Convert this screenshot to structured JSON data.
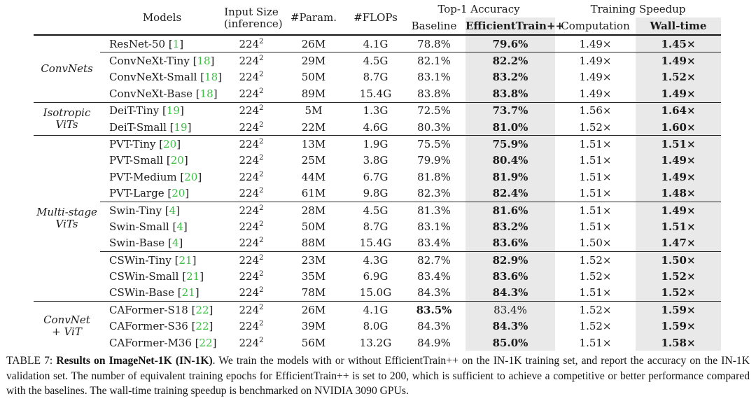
{
  "colors": {
    "citation_green": "#3cbf44",
    "column_shade": "#e9e9e9",
    "text": "#1b1b1b"
  },
  "table": {
    "headers": {
      "models": "Models",
      "input_line1": "Input Size",
      "input_line2": "(inference)",
      "params": "#Param.",
      "flops": "#FLOPs",
      "top1_accuracy": "Top-1 Accuracy",
      "training_speedup": "Training Speedup",
      "baseline": "Baseline",
      "efficienttrain": "EfficientTrain++",
      "computation": "Computation",
      "walltime": "Wall-time"
    },
    "groups": [
      {
        "label_lines": [
          "ConvNets"
        ],
        "blocks": [
          {
            "rows": [
              {
                "model": "ResNet-50",
                "ref": "1",
                "input": "224",
                "exp": "2",
                "params": "26M",
                "flops": "4.1G",
                "baseline": "78.8%",
                "et": "79.6%",
                "comp": "1.49×",
                "wall": "1.45×"
              }
            ]
          },
          {
            "rows": [
              {
                "model": "ConvNeXt-Tiny",
                "ref": "18",
                "input": "224",
                "exp": "2",
                "params": "29M",
                "flops": "4.5G",
                "baseline": "82.1%",
                "et": "82.2%",
                "comp": "1.49×",
                "wall": "1.49×"
              },
              {
                "model": "ConvNeXt-Small",
                "ref": "18",
                "input": "224",
                "exp": "2",
                "params": "50M",
                "flops": "8.7G",
                "baseline": "83.1%",
                "et": "83.2%",
                "comp": "1.49×",
                "wall": "1.52×"
              },
              {
                "model": "ConvNeXt-Base",
                "ref": "18",
                "input": "224",
                "exp": "2",
                "params": "89M",
                "flops": "15.4G",
                "baseline": "83.8%",
                "et": "83.8%",
                "comp": "1.49×",
                "wall": "1.49×"
              }
            ]
          }
        ]
      },
      {
        "label_lines": [
          "Isotropic",
          "ViTs"
        ],
        "blocks": [
          {
            "rows": [
              {
                "model": "DeiT-Tiny",
                "ref": "19",
                "input": "224",
                "exp": "2",
                "params": "5M",
                "flops": "1.3G",
                "baseline": "72.5%",
                "et": "73.7%",
                "comp": "1.56×",
                "wall": "1.64×"
              },
              {
                "model": "DeiT-Small",
                "ref": "19",
                "input": "224",
                "exp": "2",
                "params": "22M",
                "flops": "4.6G",
                "baseline": "80.3%",
                "et": "81.0%",
                "comp": "1.52×",
                "wall": "1.60×"
              }
            ]
          }
        ]
      },
      {
        "label_lines": [
          "Multi-stage",
          "ViTs"
        ],
        "blocks": [
          {
            "rows": [
              {
                "model": "PVT-Tiny",
                "ref": "20",
                "input": "224",
                "exp": "2",
                "params": "13M",
                "flops": "1.9G",
                "baseline": "75.5%",
                "et": "75.9%",
                "comp": "1.51×",
                "wall": "1.51×"
              },
              {
                "model": "PVT-Small",
                "ref": "20",
                "input": "224",
                "exp": "2",
                "params": "25M",
                "flops": "3.8G",
                "baseline": "79.9%",
                "et": "80.4%",
                "comp": "1.51×",
                "wall": "1.49×"
              },
              {
                "model": "PVT-Medium",
                "ref": "20",
                "input": "224",
                "exp": "2",
                "params": "44M",
                "flops": "6.7G",
                "baseline": "81.8%",
                "et": "81.9%",
                "comp": "1.51×",
                "wall": "1.49×"
              },
              {
                "model": "PVT-Large",
                "ref": "20",
                "input": "224",
                "exp": "2",
                "params": "61M",
                "flops": "9.8G",
                "baseline": "82.3%",
                "et": "82.4%",
                "comp": "1.51×",
                "wall": "1.48×"
              }
            ]
          },
          {
            "rows": [
              {
                "model": "Swin-Tiny",
                "ref": "4",
                "input": "224",
                "exp": "2",
                "params": "28M",
                "flops": "4.5G",
                "baseline": "81.3%",
                "et": "81.6%",
                "comp": "1.51×",
                "wall": "1.49×"
              },
              {
                "model": "Swin-Small",
                "ref": "4",
                "input": "224",
                "exp": "2",
                "params": "50M",
                "flops": "8.7G",
                "baseline": "83.1%",
                "et": "83.2%",
                "comp": "1.51×",
                "wall": "1.51×"
              },
              {
                "model": "Swin-Base",
                "ref": "4",
                "input": "224",
                "exp": "2",
                "params": "88M",
                "flops": "15.4G",
                "baseline": "83.4%",
                "et": "83.6%",
                "comp": "1.50×",
                "wall": "1.47×"
              }
            ]
          },
          {
            "rows": [
              {
                "model": "CSWin-Tiny",
                "ref": "21",
                "input": "224",
                "exp": "2",
                "params": "23M",
                "flops": "4.3G",
                "baseline": "82.7%",
                "et": "82.9%",
                "comp": "1.52×",
                "wall": "1.50×"
              },
              {
                "model": "CSWin-Small",
                "ref": "21",
                "input": "224",
                "exp": "2",
                "params": "35M",
                "flops": "6.9G",
                "baseline": "83.4%",
                "et": "83.6%",
                "comp": "1.52×",
                "wall": "1.52×"
              },
              {
                "model": "CSWin-Base",
                "ref": "21",
                "input": "224",
                "exp": "2",
                "params": "78M",
                "flops": "15.0G",
                "baseline": "84.3%",
                "et": "84.3%",
                "comp": "1.51×",
                "wall": "1.52×"
              }
            ]
          }
        ]
      },
      {
        "label_lines": [
          "ConvNet",
          "+ ViT"
        ],
        "blocks": [
          {
            "rows": [
              {
                "model": "CAFormer-S18",
                "ref": "22",
                "input": "224",
                "exp": "2",
                "params": "26M",
                "flops": "4.1G",
                "baseline": "83.5%",
                "et": "83.4%",
                "comp": "1.52×",
                "wall": "1.59×",
                "baseline_bold": true,
                "et_bold": false
              },
              {
                "model": "CAFormer-S36",
                "ref": "22",
                "input": "224",
                "exp": "2",
                "params": "39M",
                "flops": "8.0G",
                "baseline": "84.3%",
                "et": "84.3%",
                "comp": "1.52×",
                "wall": "1.59×"
              },
              {
                "model": "CAFormer-M36",
                "ref": "22",
                "input": "224",
                "exp": "2",
                "params": "56M",
                "flops": "13.2G",
                "baseline": "84.9%",
                "et": "85.0%",
                "comp": "1.51×",
                "wall": "1.58×"
              }
            ]
          }
        ]
      }
    ]
  },
  "caption": {
    "prefix": "TABLE 7:",
    "title": "Results on ImageNet-1K (IN-1K)",
    "body": ". We train the models with or without EfficientTrain++ on the IN-1K training set, and report the accuracy on the IN-1K validation set. The number of equivalent training epochs for EfficientTrain++ is set to 200, which is sufficient to achieve a competitive or better performance compared with the baselines. The wall-time training speedup is benchmarked on NVIDIA 3090 GPUs."
  }
}
